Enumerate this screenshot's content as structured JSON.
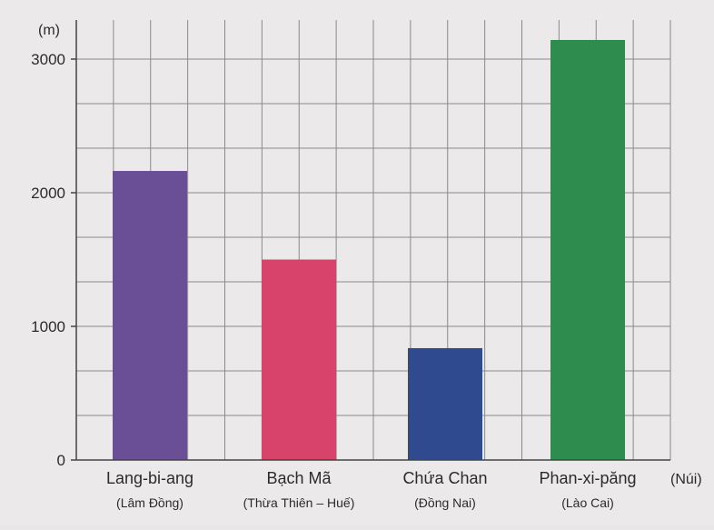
{
  "chart_data": {
    "type": "bar",
    "ylabel": "(m)",
    "xlabel": "(Núi)",
    "ylim": [
      0,
      3000
    ],
    "yticks": [
      0,
      1000,
      2000,
      3000
    ],
    "grid": true,
    "categories": [
      "Lang-bi-ang",
      "Bạch Mã",
      "Chứa Chan",
      "Phan-xi-păng"
    ],
    "sublabels": [
      "(Lâm Đồng)",
      "(Thừa Thiên – Huế)",
      "(Đồng Nai)",
      "(Lào Cai)"
    ],
    "values": [
      2163,
      1500,
      837,
      3143
    ],
    "colors": [
      "#6a4f97",
      "#d8436b",
      "#2f4a8e",
      "#2f8c4f"
    ]
  }
}
